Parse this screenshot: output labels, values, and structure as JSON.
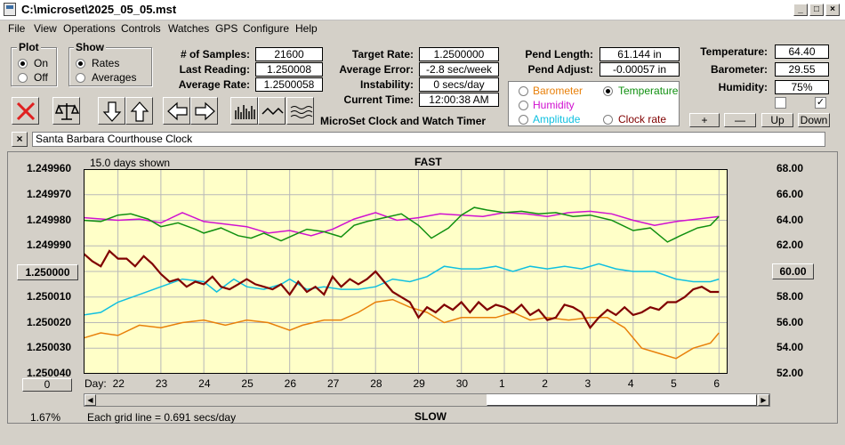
{
  "window": {
    "title": "C:\\microset\\2025_05_05.mst"
  },
  "menu": [
    "File",
    "View",
    "Operations",
    "Controls",
    "Watches",
    "GPS",
    "Configure",
    "Help"
  ],
  "plot_group": {
    "title": "Plot",
    "options": [
      "On",
      "Off"
    ],
    "selected": "On"
  },
  "show_group": {
    "title": "Show",
    "options": [
      "Rates",
      "Averages"
    ],
    "selected": "Rates"
  },
  "stats_left": [
    {
      "label": "# of Samples:",
      "value": "21600"
    },
    {
      "label": "Last Reading:",
      "value": "1.250008"
    },
    {
      "label": "Average Rate:",
      "value": "1.2500058"
    }
  ],
  "stats_mid": [
    {
      "label": "Target Rate:",
      "value": "1.2500000"
    },
    {
      "label": "Average Error:",
      "value": "-2.8 sec/week"
    },
    {
      "label": "Instability:",
      "value": "0 secs/day"
    },
    {
      "label": "Current Time:",
      "value": "12:00:38 AM"
    }
  ],
  "pend": [
    {
      "label": "Pend Length:",
      "value": "61.144 in"
    },
    {
      "label": "Pend Adjust:",
      "value": "-0.00057 in"
    }
  ],
  "env": [
    {
      "label": "Temperature:",
      "value": "64.40"
    },
    {
      "label": "Barometer:",
      "value": "29.55"
    },
    {
      "label": "Humidity:",
      "value": "75%"
    }
  ],
  "env_checks": [
    false,
    true
  ],
  "env_buttons": [
    "+",
    "—",
    "Up",
    "Down"
  ],
  "product_label": "MicroSet Clock and Watch Timer",
  "series_options": [
    {
      "label": "Barometer",
      "color": "#e8800a",
      "selected": false
    },
    {
      "label": "Temperature",
      "color": "#109010",
      "selected": true
    },
    {
      "label": "Humidity",
      "color": "#d010d0",
      "selected": false
    },
    {
      "label": "Amplitude",
      "color": "#10c0e0",
      "selected": false
    },
    {
      "label": "Clock rate",
      "color": "#800000",
      "selected": false
    }
  ],
  "toolbar_icons": [
    "stop-icon",
    "balance-icon",
    "arrow-down-icon",
    "arrow-up-icon",
    "arrow-left-icon",
    "arrow-right-icon",
    "histogram-icon",
    "wave-icon",
    "multi-wave-icon"
  ],
  "clock_name": "Santa Barbara Courthouse Clock",
  "chart_status": {
    "days_shown": "15.0 days shown",
    "fast": "FAST",
    "slow": "SLOW",
    "grid_note": "Each grid line = 0.691 secs/day",
    "percent": "1.67%",
    "day_label": "Day:",
    "left_button": "1.250000",
    "right_button": "60.00",
    "bottom_button": "0"
  },
  "chart_data": {
    "type": "line",
    "left_axis_ticks": [
      "1.249960",
      "1.249970",
      "1.249980",
      "1.249990",
      "1.250000",
      "1.250010",
      "1.250020",
      "1.250030",
      "1.250040"
    ],
    "right_axis_ticks": [
      "68.00",
      "66.00",
      "64.00",
      "62.00",
      "60.00",
      "58.00",
      "56.00",
      "54.00",
      "52.00"
    ],
    "x_ticks": [
      "22",
      "23",
      "24",
      "25",
      "26",
      "27",
      "28",
      "29",
      "30",
      "1",
      "2",
      "3",
      "4",
      "5",
      "6"
    ],
    "xlim": [
      21.2,
      36.2
    ],
    "left_ylim": [
      1.24996,
      1.25004
    ],
    "right_ylim": [
      52,
      68
    ],
    "series": [
      {
        "name": "Humidity",
        "color": "#d010d0",
        "axis": "right",
        "x": [
          21.2,
          22,
          22.5,
          23,
          23.5,
          24,
          25,
          25.5,
          26,
          26.5,
          27,
          27.5,
          28,
          28.5,
          29,
          29.5,
          30,
          30.5,
          31,
          31.5,
          32,
          32.5,
          33,
          33.5,
          34,
          34.5,
          35,
          35.5,
          36
        ],
        "y": [
          64.2,
          64.0,
          64.1,
          63.8,
          64.6,
          63.9,
          63.5,
          63.0,
          63.2,
          62.8,
          63.3,
          64.1,
          64.6,
          64.0,
          64.2,
          64.5,
          64.4,
          64.3,
          64.6,
          64.5,
          64.3,
          64.6,
          64.7,
          64.5,
          64.0,
          63.6,
          63.9,
          64.1,
          64.3
        ]
      },
      {
        "name": "Temperature",
        "color": "#109010",
        "axis": "right",
        "x": [
          21.2,
          21.6,
          22,
          22.3,
          22.7,
          23,
          23.4,
          23.8,
          24,
          24.4,
          24.8,
          25.1,
          25.4,
          25.8,
          26,
          26.4,
          26.8,
          27.2,
          27.5,
          27.8,
          28.2,
          28.6,
          29,
          29.3,
          29.7,
          30,
          30.3,
          30.6,
          31,
          31.4,
          31.8,
          32.2,
          32.6,
          33,
          33.5,
          34,
          34.4,
          34.8,
          35.1,
          35.5,
          35.8,
          36
        ],
        "y": [
          64.0,
          63.9,
          64.4,
          64.5,
          64.1,
          63.5,
          63.8,
          63.3,
          63.0,
          63.4,
          62.8,
          62.6,
          63.0,
          62.4,
          62.7,
          63.3,
          63.1,
          62.7,
          63.6,
          63.9,
          64.2,
          64.5,
          63.6,
          62.6,
          63.4,
          64.4,
          65.0,
          64.8,
          64.6,
          64.7,
          64.5,
          64.6,
          64.3,
          64.4,
          64.0,
          63.2,
          63.4,
          62.3,
          62.8,
          63.4,
          63.6,
          64.3
        ]
      },
      {
        "name": "Amplitude",
        "color": "#10c0e0",
        "axis": "left",
        "x": [
          21.2,
          21.6,
          22,
          22.5,
          23,
          23.5,
          24,
          24.3,
          24.7,
          25,
          25.4,
          25.8,
          26,
          26.4,
          26.8,
          27.2,
          27.6,
          28,
          28.4,
          28.8,
          29.2,
          29.6,
          30,
          30.4,
          30.8,
          31.2,
          31.6,
          32,
          32.4,
          32.8,
          33.2,
          33.6,
          34,
          34.5,
          35,
          35.4,
          35.8,
          36
        ],
        "y": [
          1.250017,
          1.250016,
          1.250012,
          1.250009,
          1.250006,
          1.250003,
          1.250004,
          1.250008,
          1.250003,
          1.250006,
          1.250007,
          1.250005,
          1.250003,
          1.250007,
          1.250006,
          1.250007,
          1.250007,
          1.250006,
          1.250003,
          1.250004,
          1.250002,
          1.249998,
          1.249999,
          1.249999,
          1.249998,
          1.25,
          1.249998,
          1.249999,
          1.249998,
          1.249999,
          1.249997,
          1.249999,
          1.25,
          1.25,
          1.250003,
          1.250004,
          1.250004,
          1.250003
        ]
      },
      {
        "name": "Barometer",
        "color": "#e8800a",
        "axis": "left",
        "x": [
          21.2,
          21.6,
          22,
          22.5,
          23,
          23.5,
          24,
          24.5,
          25,
          25.5,
          26,
          26.3,
          26.8,
          27.2,
          27.6,
          28,
          28.4,
          28.8,
          29.2,
          29.6,
          30,
          30.4,
          30.8,
          31.2,
          31.6,
          32,
          32.5,
          33,
          33.4,
          33.8,
          34.2,
          34.6,
          35,
          35.4,
          35.8,
          36
        ],
        "y": [
          1.250026,
          1.250024,
          1.250025,
          1.250021,
          1.250022,
          1.25002,
          1.250019,
          1.250021,
          1.250019,
          1.25002,
          1.250023,
          1.250021,
          1.250019,
          1.250019,
          1.250016,
          1.250012,
          1.250011,
          1.250014,
          1.250016,
          1.25002,
          1.250018,
          1.250018,
          1.250018,
          1.250016,
          1.250019,
          1.250018,
          1.250019,
          1.250018,
          1.250018,
          1.250022,
          1.25003,
          1.250032,
          1.250034,
          1.25003,
          1.250028,
          1.250024
        ]
      },
      {
        "name": "Clock rate",
        "color": "#800000",
        "axis": "left",
        "x": [
          21.2,
          21.4,
          21.6,
          21.8,
          22,
          22.2,
          22.4,
          22.6,
          22.8,
          23,
          23.2,
          23.4,
          23.6,
          23.8,
          24,
          24.2,
          24.4,
          24.6,
          24.8,
          25,
          25.2,
          25.4,
          25.6,
          25.8,
          26,
          26.2,
          26.4,
          26.6,
          26.8,
          27,
          27.2,
          27.4,
          27.6,
          27.8,
          28,
          28.2,
          28.4,
          28.6,
          28.8,
          29,
          29.2,
          29.4,
          29.6,
          29.8,
          30,
          30.2,
          30.4,
          30.6,
          30.8,
          31,
          31.2,
          31.4,
          31.6,
          31.8,
          32,
          32.2,
          32.4,
          32.6,
          32.8,
          33,
          33.2,
          33.4,
          33.6,
          33.8,
          34,
          34.2,
          34.4,
          34.6,
          34.8,
          35,
          35.2,
          35.4,
          35.6,
          35.8,
          36
        ],
        "y": [
          1.249993,
          1.249996,
          1.249998,
          1.249992,
          1.249995,
          1.249995,
          1.249998,
          1.249994,
          1.249997,
          1.250001,
          1.250004,
          1.250003,
          1.250006,
          1.250004,
          1.250005,
          1.250002,
          1.250006,
          1.250007,
          1.250005,
          1.250003,
          1.250005,
          1.250006,
          1.250007,
          1.250005,
          1.250009,
          1.250004,
          1.250008,
          1.250006,
          1.250009,
          1.250002,
          1.250006,
          1.250003,
          1.250005,
          1.250003,
          1.25,
          1.250004,
          1.250008,
          1.25001,
          1.250012,
          1.250018,
          1.250014,
          1.250016,
          1.250013,
          1.250015,
          1.250012,
          1.250016,
          1.250012,
          1.250015,
          1.250013,
          1.250014,
          1.250016,
          1.250013,
          1.250017,
          1.250015,
          1.250019,
          1.250018,
          1.250013,
          1.250014,
          1.250016,
          1.250022,
          1.250018,
          1.250015,
          1.250017,
          1.250014,
          1.250017,
          1.250016,
          1.250014,
          1.250015,
          1.250012,
          1.250012,
          1.25001,
          1.250007,
          1.250006,
          1.250008,
          1.250008
        ]
      }
    ]
  }
}
